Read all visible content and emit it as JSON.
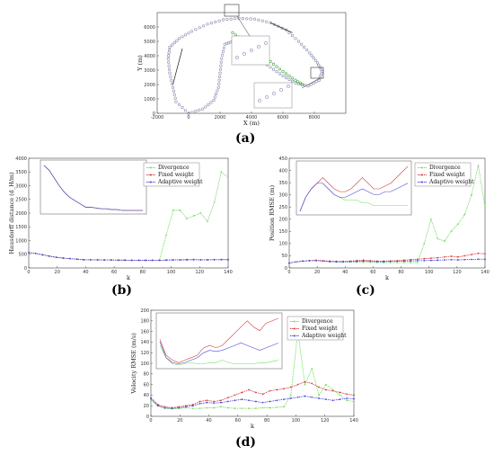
{
  "captions": {
    "a": "(a)",
    "b": "(b)",
    "c": "(c)",
    "d": "(d)"
  },
  "colors": {
    "divergence": "#7CD96B",
    "fixed": "#D93A3A",
    "adaptive": "#4A4AD9",
    "track_gray": "#8A8FB0",
    "track_green": "#3CA83C",
    "arrow": "#333333"
  },
  "legend": [
    "Divergence",
    "Fixed weight",
    "Adaptive weight"
  ],
  "chart_data": [
    {
      "id": "a",
      "type": "scatter",
      "xlabel": "X (m)",
      "ylabel": "Y (m)",
      "xlim": [
        -2000,
        10000
      ],
      "ylim": [
        0,
        7000
      ],
      "xticks": [
        -2000,
        0,
        2000,
        4000,
        6000,
        8000
      ],
      "yticks": [
        0,
        1000,
        2000,
        3000,
        4000,
        5000,
        6000
      ],
      "series": [
        {
          "values": [
            [
              0,
              0
            ],
            [
              -800,
              800
            ],
            [
              -1000,
              1800
            ],
            [
              -1200,
              2800
            ],
            [
              -1300,
              3800
            ],
            [
              -1200,
              4600
            ],
            [
              -600,
              5200
            ],
            [
              200,
              5700
            ],
            [
              1200,
              6200
            ],
            [
              2200,
              6500
            ],
            [
              3200,
              6600
            ],
            [
              4200,
              6550
            ],
            [
              5200,
              6300
            ],
            [
              6200,
              5800
            ],
            [
              7000,
              5000
            ],
            [
              7700,
              4200
            ],
            [
              8200,
              3500
            ],
            [
              8500,
              2900
            ],
            [
              8300,
              2300
            ],
            [
              7600,
              1900
            ],
            [
              6800,
              2100
            ],
            [
              6000,
              2600
            ],
            [
              5200,
              3200
            ],
            [
              4400,
              3900
            ],
            [
              3600,
              4500
            ],
            [
              2800,
              5000
            ],
            [
              2300,
              4800
            ],
            [
              2100,
              3800
            ],
            [
              2000,
              2800
            ],
            [
              1900,
              1800
            ],
            [
              1600,
              900
            ],
            [
              900,
              300
            ],
            [
              0,
              0
            ]
          ]
        },
        {
          "values": [
            [
              2800,
              5600
            ],
            [
              3600,
              5000
            ],
            [
              4400,
              4300
            ],
            [
              5200,
              3600
            ],
            [
              6000,
              2900
            ],
            [
              6800,
              2300
            ],
            [
              7400,
              1900
            ]
          ]
        }
      ]
    },
    {
      "id": "b",
      "type": "line",
      "xlabel": "k",
      "ylabel": "Hausdorff distance (d_H/m)",
      "xlim": [
        0,
        140
      ],
      "ylim": [
        0,
        4000
      ],
      "xticks": [
        0,
        20,
        40,
        60,
        80,
        100,
        120,
        140
      ],
      "yticks": [
        0,
        500,
        1000,
        1500,
        2000,
        2500,
        3000,
        3500,
        4000
      ],
      "series": [
        {
          "name": "Divergence",
          "values": [
            560,
            530,
            480,
            430,
            390,
            360,
            340,
            320,
            300,
            300,
            295,
            290,
            290,
            285,
            285,
            280,
            280,
            280,
            280,
            280,
            1200,
            2100,
            2100,
            1800,
            1900,
            2000,
            1700,
            2400,
            3500,
            3300
          ]
        },
        {
          "name": "Fixed weight",
          "values": [
            560,
            530,
            480,
            430,
            390,
            360,
            340,
            320,
            300,
            300,
            295,
            290,
            290,
            285,
            285,
            280,
            280,
            280,
            280,
            280,
            290,
            300,
            300,
            305,
            310,
            300,
            300,
            305,
            310,
            310
          ]
        },
        {
          "name": "Adaptive weight",
          "values": [
            560,
            530,
            480,
            430,
            390,
            360,
            340,
            320,
            300,
            300,
            295,
            290,
            290,
            285,
            285,
            280,
            280,
            280,
            280,
            280,
            285,
            290,
            290,
            295,
            300,
            295,
            295,
            300,
            300,
            300
          ]
        }
      ]
    },
    {
      "id": "c",
      "type": "line",
      "xlabel": "k",
      "ylabel": "Position RMSE (m)",
      "xlim": [
        0,
        140
      ],
      "ylim": [
        0,
        450
      ],
      "xticks": [
        0,
        20,
        40,
        60,
        80,
        100,
        120,
        140
      ],
      "yticks": [
        0,
        50,
        100,
        150,
        200,
        250,
        300,
        350,
        400,
        450
      ],
      "series": [
        {
          "name": "Divergence",
          "values": [
            20,
            25,
            28,
            30,
            30,
            28,
            26,
            25,
            24,
            24,
            24,
            23,
            23,
            22,
            22,
            22,
            22,
            22,
            22,
            22,
            100,
            200,
            120,
            110,
            150,
            180,
            220,
            300,
            420,
            250
          ]
        },
        {
          "name": "Fixed weight",
          "values": [
            20,
            25,
            28,
            30,
            32,
            30,
            28,
            27,
            27,
            28,
            30,
            32,
            30,
            28,
            28,
            29,
            30,
            32,
            34,
            36,
            38,
            40,
            42,
            45,
            48,
            45,
            50,
            55,
            60,
            58
          ]
        },
        {
          "name": "Adaptive weight",
          "values": [
            20,
            25,
            28,
            30,
            30,
            28,
            26,
            25,
            25,
            26,
            27,
            28,
            27,
            26,
            26,
            27,
            27,
            28,
            29,
            30,
            30,
            31,
            32,
            33,
            34,
            33,
            34,
            35,
            36,
            36
          ]
        }
      ]
    },
    {
      "id": "d",
      "type": "line",
      "xlabel": "k",
      "ylabel": "Velocity RMSE (m/s)",
      "xlim": [
        0,
        140
      ],
      "ylim": [
        0,
        200
      ],
      "xticks": [
        0,
        20,
        40,
        60,
        80,
        100,
        120,
        140
      ],
      "yticks": [
        0,
        20,
        40,
        60,
        80,
        100,
        120,
        140,
        160,
        180,
        200
      ],
      "series": [
        {
          "name": "Divergence",
          "values": [
            30,
            20,
            15,
            14,
            15,
            16,
            15,
            15,
            16,
            16,
            18,
            16,
            15,
            15,
            15,
            15,
            16,
            16,
            17,
            18,
            40,
            160,
            60,
            90,
            40,
            60,
            50,
            40,
            30,
            28
          ]
        },
        {
          "name": "Fixed weight",
          "values": [
            35,
            22,
            18,
            16,
            18,
            20,
            22,
            28,
            30,
            28,
            30,
            35,
            40,
            45,
            50,
            45,
            42,
            48,
            50,
            52,
            55,
            60,
            65,
            62,
            55,
            50,
            48,
            45,
            42,
            40
          ]
        },
        {
          "name": "Adaptive weight",
          "values": [
            33,
            20,
            16,
            15,
            16,
            18,
            20,
            24,
            26,
            25,
            26,
            28,
            30,
            32,
            30,
            28,
            26,
            28,
            30,
            32,
            34,
            36,
            38,
            36,
            34,
            32,
            30,
            32,
            34,
            33
          ]
        }
      ]
    }
  ]
}
